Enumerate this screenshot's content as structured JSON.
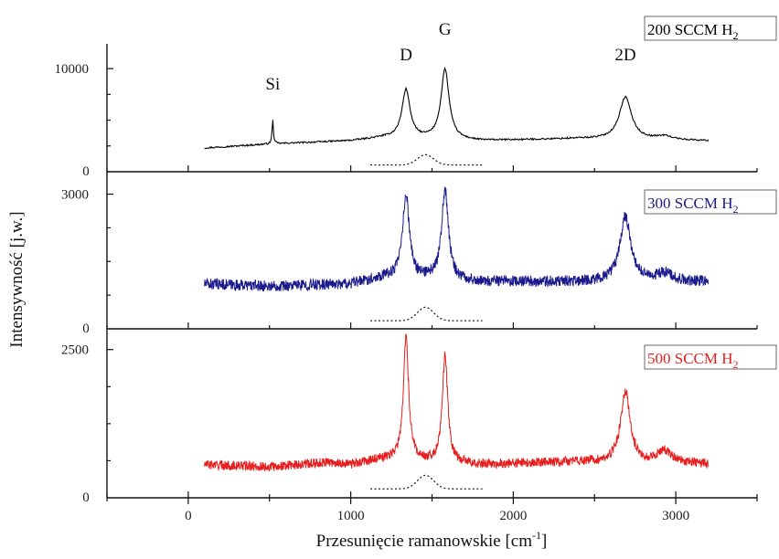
{
  "chart_data": {
    "type": "line",
    "xlabel": "Przesunięcie ramanowskie [cm",
    "xlabel_sup": "-1",
    "xlabel_end": "]",
    "ylabel": "Intensywność [j.w.]",
    "xlim": [
      -500,
      3500
    ],
    "x_ticks": [
      0,
      1000,
      2000,
      3000
    ],
    "x_tick_labels": [
      "0",
      "1000",
      "2000",
      "3000"
    ],
    "peak_labels": [
      {
        "text": "Si",
        "x": 520
      },
      {
        "text": "D",
        "x": 1340
      },
      {
        "text": "G",
        "x": 1580
      },
      {
        "text": "2D",
        "x": 2690
      }
    ],
    "panels": [
      {
        "series_name": "200 SCCM H",
        "series_sub": "2",
        "color": "#000000",
        "ylim": [
          0,
          12400
        ],
        "y_zero_label": "0",
        "y_ticks": [
          10000
        ],
        "y_tick_labels": [
          "10000"
        ],
        "noise": 0.006,
        "baseline": [
          [
            100,
            2300
          ],
          [
            520,
            2700
          ],
          [
            1000,
            3000
          ],
          [
            1200,
            3300
          ],
          [
            1800,
            3000
          ],
          [
            2400,
            3200
          ],
          [
            3200,
            3000
          ]
        ],
        "peaks": [
          {
            "center": 520,
            "height": 2300,
            "width": 5
          },
          {
            "center": 1340,
            "height": 4700,
            "width": 30
          },
          {
            "center": 1580,
            "height": 6800,
            "width": 30
          },
          {
            "center": 2690,
            "height": 4100,
            "width": 45
          },
          {
            "center": 2930,
            "height": 350,
            "width": 60
          }
        ],
        "dotted": {
          "x_start": 1120,
          "x_end": 1810,
          "level": 650,
          "bump_center": 1460,
          "bump_height": 1000,
          "bump_width": 70
        }
      },
      {
        "series_name": "300 SCCM H",
        "series_sub": "2",
        "color": "#1a1a8c",
        "ylim": [
          0,
          3500
        ],
        "y_zero_label": "0",
        "y_ticks": [
          3000
        ],
        "y_tick_labels": [
          "3000"
        ],
        "noise": 0.035,
        "baseline": [
          [
            100,
            1000
          ],
          [
            500,
            950
          ],
          [
            1000,
            1000
          ],
          [
            1200,
            1150
          ],
          [
            1800,
            1050
          ],
          [
            2400,
            1050
          ],
          [
            3200,
            1050
          ]
        ],
        "peaks": [
          {
            "center": 1340,
            "height": 1850,
            "width": 25
          },
          {
            "center": 1580,
            "height": 2000,
            "width": 25
          },
          {
            "center": 2690,
            "height": 1450,
            "width": 40
          },
          {
            "center": 2930,
            "height": 180,
            "width": 60
          }
        ],
        "dotted": {
          "x_start": 1120,
          "x_end": 1810,
          "level": 180,
          "bump_center": 1460,
          "bump_height": 300,
          "bump_width": 70
        }
      },
      {
        "series_name": "500 SCCM H",
        "series_sub": "2",
        "color": "#e61e1e",
        "ylim": [
          0,
          2850
        ],
        "y_zero_label": "0",
        "y_ticks": [
          2500
        ],
        "y_tick_labels": [
          "2500"
        ],
        "noise": 0.028,
        "baseline": [
          [
            100,
            560
          ],
          [
            500,
            520
          ],
          [
            850,
            600
          ],
          [
            1000,
            560
          ],
          [
            1200,
            650
          ],
          [
            1800,
            560
          ],
          [
            2400,
            610
          ],
          [
            3200,
            570
          ]
        ],
        "peaks": [
          {
            "center": 1340,
            "height": 2050,
            "width": 20
          },
          {
            "center": 1580,
            "height": 1800,
            "width": 20
          },
          {
            "center": 2690,
            "height": 1200,
            "width": 35
          },
          {
            "center": 2930,
            "height": 200,
            "width": 55
          }
        ],
        "dotted": {
          "x_start": 1120,
          "x_end": 1810,
          "level": 150,
          "bump_center": 1460,
          "bump_height": 230,
          "bump_width": 70
        }
      }
    ]
  }
}
